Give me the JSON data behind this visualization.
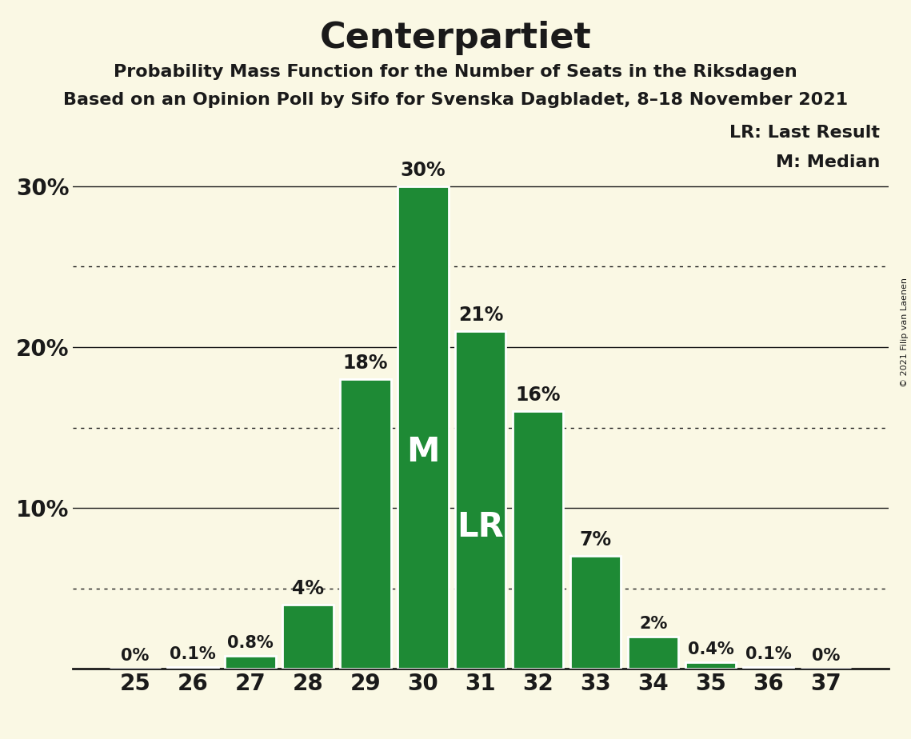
{
  "title": "Centerpartiet",
  "subtitle1": "Probability Mass Function for the Number of Seats in the Riksdagen",
  "subtitle2": "Based on an Opinion Poll by Sifo for Svenska Dagbladet, 8–18 November 2021",
  "copyright": "© 2021 Filip van Laenen",
  "categories": [
    25,
    26,
    27,
    28,
    29,
    30,
    31,
    32,
    33,
    34,
    35,
    36,
    37
  ],
  "values": [
    0.0,
    0.1,
    0.8,
    4.0,
    18.0,
    30.0,
    21.0,
    16.0,
    7.0,
    2.0,
    0.4,
    0.1,
    0.0
  ],
  "labels": [
    "0%",
    "0.1%",
    "0.8%",
    "4%",
    "18%",
    "30%",
    "21%",
    "16%",
    "7%",
    "2%",
    "0.4%",
    "0.1%",
    "0%"
  ],
  "bar_color": "#1e8a35",
  "background_color": "#faf8e4",
  "text_color": "#1a1a1a",
  "median_bar": 30,
  "last_result_bar": 31,
  "legend_lr": "LR: Last Result",
  "legend_m": "M: Median",
  "ylim": [
    0,
    34
  ],
  "ytick_labeled": [
    10,
    20,
    30
  ],
  "ytick_labeled_labels": [
    "10%",
    "20%",
    "30%"
  ],
  "dotted_yticks": [
    5,
    15,
    25
  ],
  "solid_yticks": [
    10,
    20,
    30
  ],
  "title_fontsize": 32,
  "subtitle_fontsize": 16,
  "axis_tick_fontsize": 20,
  "bar_label_fontsize": 17,
  "bar_label_fontsize_small": 15,
  "legend_fontsize": 16,
  "m_lr_fontsize": 30
}
